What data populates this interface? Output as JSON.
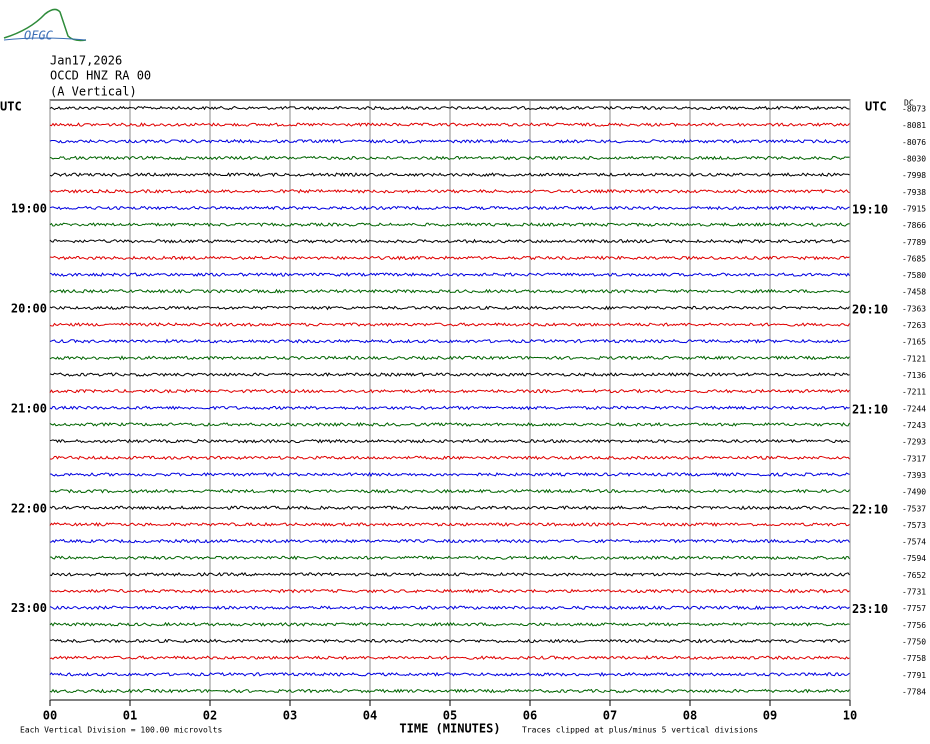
{
  "header": {
    "logo": "OFGC",
    "date": "Jan17,2026",
    "station": "OCCD HNZ RA 00",
    "component": "(A Vertical)"
  },
  "left_axis": {
    "title": "UTC",
    "labels": [
      "19:00",
      "20:00",
      "21:00",
      "22:00",
      "23:00"
    ]
  },
  "right_axis": {
    "title": "UTC",
    "labels": [
      "19:10",
      "20:10",
      "21:10",
      "22:10",
      "23:10"
    ],
    "offset_title": "DC",
    "offsets": [
      -8073,
      -8081,
      -8076,
      -8030,
      -7998,
      -7938,
      -7915,
      -7866,
      -7789,
      -7685,
      -7580,
      -7458,
      -7363,
      -7263,
      -7165,
      -7121,
      -7136,
      -7211,
      -7244,
      -7243,
      -7293,
      -7317,
      -7393,
      -7490,
      -7537,
      -7573,
      -7574,
      -7594,
      -7652,
      -7731,
      -7757,
      -7756,
      -7750,
      -7758,
      -7791,
      -7784
    ]
  },
  "x_axis": {
    "ticks": [
      "00",
      "01",
      "02",
      "03",
      "04",
      "05",
      "06",
      "07",
      "08",
      "09",
      "10"
    ],
    "title": "TIME (MINUTES)"
  },
  "footer": {
    "scale": "Each Vertical Division =  100.00 microvolts",
    "note": "Traces clipped at plus/minus 5 vertical divisions"
  }
}
